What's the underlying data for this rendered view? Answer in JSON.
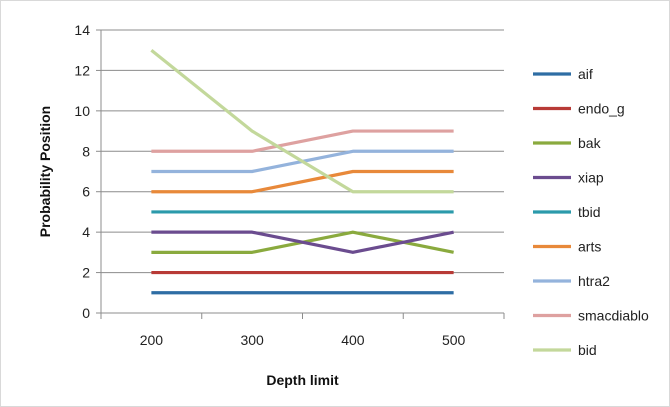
{
  "chart_data": {
    "type": "line",
    "title": "",
    "xlabel": "Depth limit",
    "ylabel": "Probability Position",
    "x": [
      "200",
      "300",
      "400",
      "500"
    ],
    "ylim": [
      0,
      14
    ],
    "yticks": [
      "0",
      "2",
      "4",
      "6",
      "8",
      "10",
      "12",
      "14"
    ],
    "grid": "horizontal",
    "legend_position": "right",
    "series": [
      {
        "name": "aif",
        "color": "#2e6da4",
        "values": [
          1,
          1,
          1,
          1
        ]
      },
      {
        "name": "endo_g",
        "color": "#b83a36",
        "values": [
          2,
          2,
          2,
          2
        ]
      },
      {
        "name": "bak",
        "color": "#8aaa3e",
        "values": [
          3,
          3,
          4,
          3
        ]
      },
      {
        "name": "xiap",
        "color": "#6b4c8f",
        "values": [
          4,
          4,
          3,
          4
        ]
      },
      {
        "name": "tbid",
        "color": "#2b9aab",
        "values": [
          5,
          5,
          5,
          5
        ]
      },
      {
        "name": "arts",
        "color": "#e8893a",
        "values": [
          6,
          6,
          7,
          7
        ]
      },
      {
        "name": "htra2",
        "color": "#94b3dc",
        "values": [
          7,
          7,
          8,
          8
        ]
      },
      {
        "name": "smacdiablo",
        "color": "#dea1a0",
        "values": [
          8,
          8,
          9,
          9
        ]
      },
      {
        "name": "bid",
        "color": "#c3d89b",
        "values": [
          13,
          9,
          6,
          6
        ]
      }
    ]
  }
}
